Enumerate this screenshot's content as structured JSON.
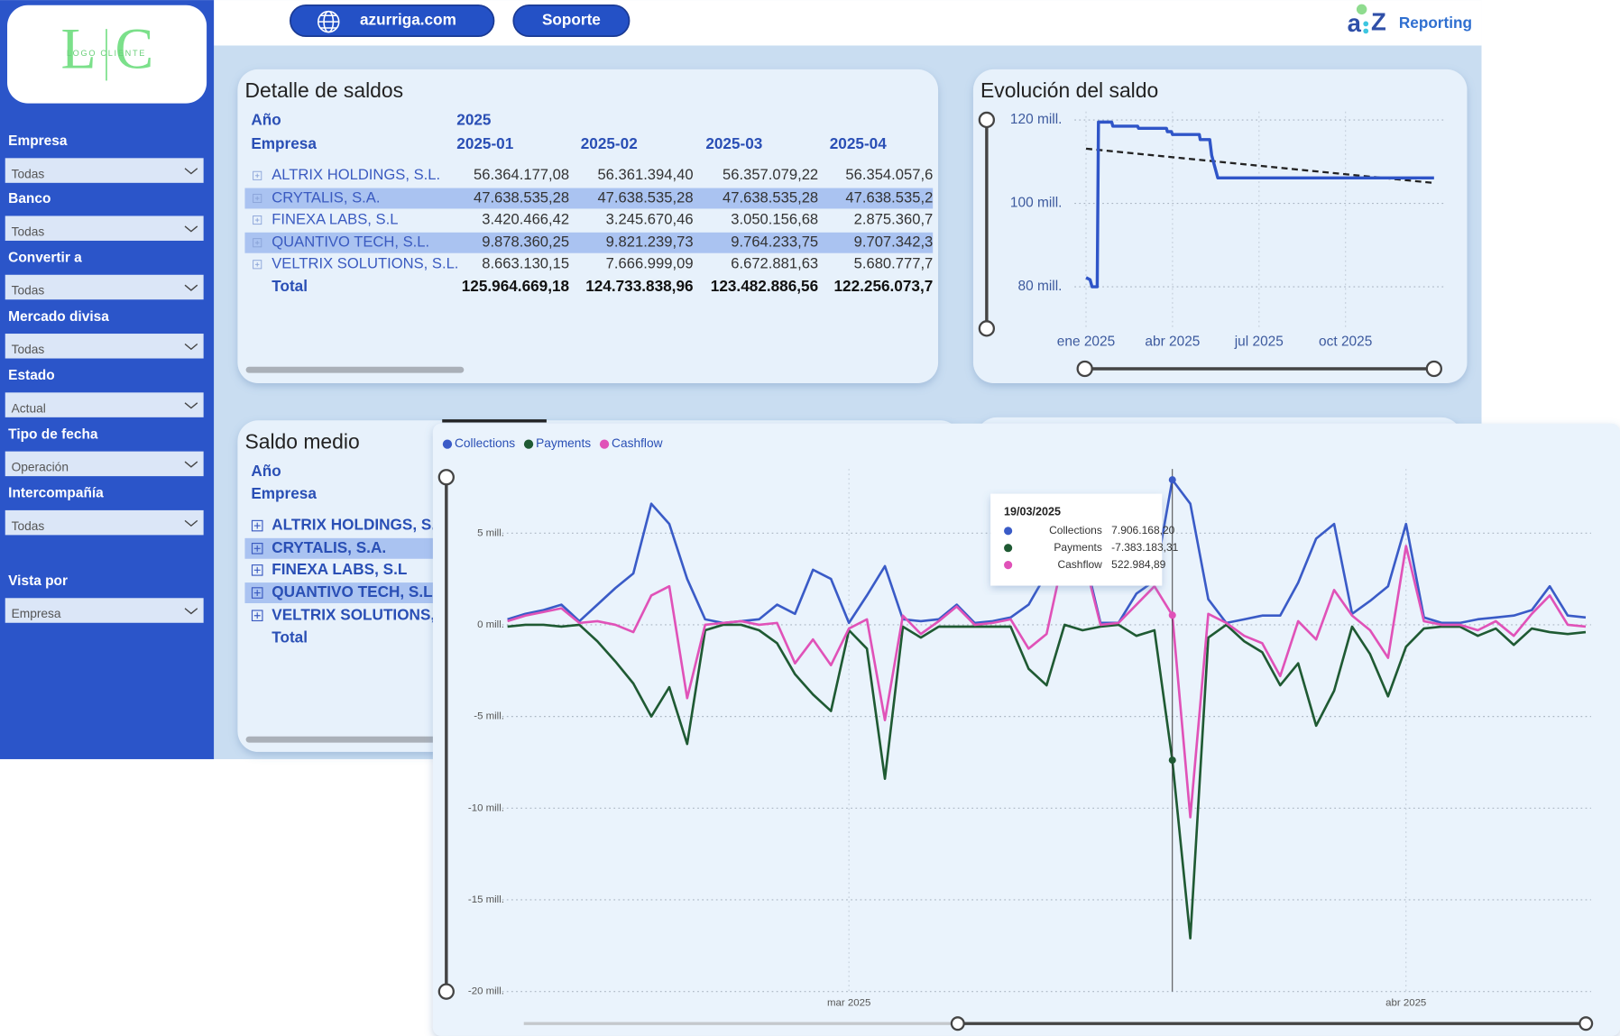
{
  "sidebar": {
    "logo_initials": [
      "L",
      "C"
    ],
    "logo_text": "LOGO CLIENTE",
    "filters": [
      {
        "label": "Empresa",
        "value": "Todas"
      },
      {
        "label": "Banco",
        "value": "Todas"
      },
      {
        "label": "Convertir a",
        "value": "Todas"
      },
      {
        "label": "Mercado divisa",
        "value": "Todas"
      },
      {
        "label": "Estado",
        "value": "Actual"
      },
      {
        "label": "Tipo de fecha",
        "value": "Operación"
      },
      {
        "label": "Intercompañía",
        "value": "Todas"
      },
      {
        "label": "Vista por",
        "value": "Empresa"
      }
    ]
  },
  "header": {
    "links": [
      "azurriga.com",
      "Soporte"
    ],
    "brand": "Reporting"
  },
  "detalle": {
    "title": "Detalle de saldos",
    "year_label": "Año",
    "year": "2025",
    "row_header": "Empresa",
    "columns": [
      "2025-01",
      "2025-02",
      "2025-03",
      "2025-04"
    ],
    "rows": [
      {
        "name": "ALTRIX HOLDINGS, S.L.",
        "values": [
          "56.364.177,08",
          "56.361.394,40",
          "56.357.079,22",
          "56.354.057,6"
        ]
      },
      {
        "name": "CRYTALIS, S.A.",
        "values": [
          "47.638.535,28",
          "47.638.535,28",
          "47.638.535,28",
          "47.638.535,2"
        ]
      },
      {
        "name": "FINEXA LABS, S.L",
        "values": [
          "3.420.466,42",
          "3.245.670,46",
          "3.050.156,68",
          "2.875.360,7"
        ]
      },
      {
        "name": "QUANTIVO TECH, S.L.",
        "values": [
          "9.878.360,25",
          "9.821.239,73",
          "9.764.233,75",
          "9.707.342,3"
        ]
      },
      {
        "name": "VELTRIX SOLUTIONS, S.L.",
        "values": [
          "8.663.130,15",
          "7.666.999,09",
          "6.672.881,63",
          "5.680.777,7"
        ]
      }
    ],
    "total": {
      "name": "Total",
      "values": [
        "125.964.669,18",
        "124.733.838,96",
        "123.482.886,56",
        "122.256.073,7"
      ]
    }
  },
  "saldo_medio": {
    "title": "Saldo medio",
    "year_label": "Año",
    "row_header": "Empresa",
    "rows": [
      "ALTRIX HOLDINGS, S.L.",
      "CRYTALIS, S.A.",
      "FINEXA LABS, S.L",
      "QUANTIVO TECH, S.L.",
      "VELTRIX SOLUTIONS, S.L."
    ],
    "total": "Total"
  },
  "chart_data": [
    {
      "type": "line",
      "title": "Evolución del saldo",
      "x": [
        0,
        0.14,
        0.21,
        0.39,
        0.43,
        0.89,
        0.93,
        1.79,
        1.82,
        2.79,
        2.82,
        2.96,
        3.0,
        3.93,
        3.96,
        4.29,
        4.36,
        4.57,
        12.07
      ],
      "values": [
        82.2,
        81.7,
        80,
        80,
        119.5,
        119.5,
        118.5,
        118.5,
        118,
        118,
        117.2,
        117.2,
        116.5,
        116.5,
        115.3,
        115.3,
        111.5,
        106.1,
        106.1
      ],
      "color": "#2f55c8",
      "trend": {
        "x": [
          0,
          12.07
        ],
        "values": [
          113.1,
          104.9
        ],
        "color": "#222222"
      },
      "xlim": [
        -0.4,
        12.5
      ],
      "xticks": [
        {
          "value": 0,
          "label": "ene 2025"
        },
        {
          "value": 3,
          "label": "abr 2025"
        },
        {
          "value": 6,
          "label": "jul 2025"
        },
        {
          "value": 9,
          "label": "oct 2025"
        }
      ],
      "ylim": [
        70,
        122
      ],
      "yticks": [
        {
          "value": 80,
          "label": "80 mill."
        },
        {
          "value": 100,
          "label": "100 mill."
        },
        {
          "value": 120,
          "label": "120 mill."
        }
      ],
      "grid": true
    },
    {
      "type": "line",
      "x": [
        -19,
        -18,
        -17,
        -16,
        -15,
        -14,
        -13,
        -12,
        -11,
        -10,
        -9,
        -8,
        -7,
        -6,
        -5,
        -4,
        -3,
        -2,
        -1,
        0,
        1,
        2,
        3,
        4,
        5,
        6,
        7,
        8,
        9,
        10,
        11,
        12,
        13,
        14,
        15,
        16,
        17,
        18,
        19,
        20,
        21,
        22,
        23,
        24,
        25,
        26,
        27,
        28,
        29,
        30,
        31,
        32,
        33,
        34,
        35,
        36,
        37,
        38,
        39,
        40,
        41
      ],
      "series": [
        {
          "name": "Collections",
          "color": "#3a5bc7",
          "values": [
            0.3,
            0.6,
            0.8,
            1.1,
            0.2,
            1.1,
            2.0,
            2.8,
            6.6,
            5.5,
            2.5,
            0.3,
            0.1,
            0.2,
            0.3,
            1.1,
            0.6,
            3.0,
            2.5,
            0.1,
            1.6,
            3.2,
            0.3,
            0.2,
            0.3,
            1.1,
            0.1,
            0.2,
            0.4,
            1.1,
            2.8,
            4.0,
            4.2,
            0.1,
            0.1,
            1.7,
            2.4,
            7.9061682,
            6.6,
            1.4,
            0.1,
            0.3,
            0.5,
            0.5,
            2.3,
            4.7,
            5.5,
            0.6,
            1.3,
            2.1,
            5.5,
            0.4,
            0.1,
            0.1,
            0.3,
            0.4,
            0.5,
            0.8,
            2.1,
            0.5,
            0.4
          ]
        },
        {
          "name": "Payments",
          "color": "#1f5a33",
          "values": [
            -0.1,
            0.0,
            0.0,
            -0.1,
            0.0,
            -0.9,
            -2.0,
            -3.2,
            -5.0,
            -3.4,
            -6.5,
            -0.3,
            0.0,
            0.0,
            -0.3,
            -1.0,
            -2.7,
            -3.8,
            -4.7,
            -0.3,
            -1.3,
            -8.4,
            -0.1,
            -0.7,
            -0.1,
            -0.1,
            -0.1,
            -0.1,
            -0.1,
            -2.4,
            -3.3,
            0.0,
            -0.3,
            -0.1,
            0.0,
            -0.6,
            -0.3,
            -7.38318331,
            -17.1,
            -0.7,
            0.0,
            -0.9,
            -1.5,
            -3.3,
            -2.1,
            -5.5,
            -3.6,
            -0.1,
            -1.6,
            -3.9,
            -1.2,
            -0.2,
            -0.1,
            -0.1,
            -0.6,
            -0.2,
            -1.1,
            -0.2,
            -0.4,
            -0.5,
            -0.4
          ]
        },
        {
          "name": "Cashflow",
          "color": "#e052b8",
          "values": [
            0.2,
            0.5,
            0.7,
            0.9,
            0.1,
            0.2,
            0.0,
            -0.4,
            1.6,
            2.1,
            -4.0,
            0.0,
            0.1,
            0.2,
            0.0,
            0.1,
            -2.1,
            -0.8,
            -2.2,
            -0.2,
            0.3,
            -5.2,
            0.5,
            -0.5,
            0.2,
            1.0,
            0.0,
            0.1,
            0.3,
            -1.3,
            -0.5,
            4.0,
            3.9,
            0.0,
            0.1,
            1.1,
            2.1,
            0.52298489,
            -10.5,
            0.6,
            0.1,
            -0.6,
            -1.0,
            -2.8,
            0.2,
            -0.8,
            1.9,
            0.5,
            -0.3,
            -1.8,
            4.3,
            0.2,
            0.0,
            0.0,
            -0.3,
            0.2,
            -0.6,
            0.6,
            1.6,
            0.0,
            -0.1
          ]
        }
      ],
      "tooltip": {
        "index": 37,
        "title": "19/03/2025",
        "labels": [
          "7.906.168,20",
          "-7.383.183,31",
          "522.984,89"
        ]
      },
      "xlim": [
        -19.3,
        41.3
      ],
      "xticks": [
        {
          "value": 0,
          "label": "mar 2025"
        },
        {
          "value": 31,
          "label": "abr 2025"
        }
      ],
      "ylim": [
        -20,
        8.5
      ],
      "yticks": [
        {
          "value": -20,
          "label": "-20 mill."
        },
        {
          "value": -15,
          "label": "-15 mill."
        },
        {
          "value": -10,
          "label": "-10 mill."
        },
        {
          "value": -5,
          "label": "-5 mill."
        },
        {
          "value": 0,
          "label": "0 mill."
        },
        {
          "value": 5,
          "label": "5 mill."
        }
      ],
      "grid": true,
      "legend": "top-left"
    }
  ]
}
